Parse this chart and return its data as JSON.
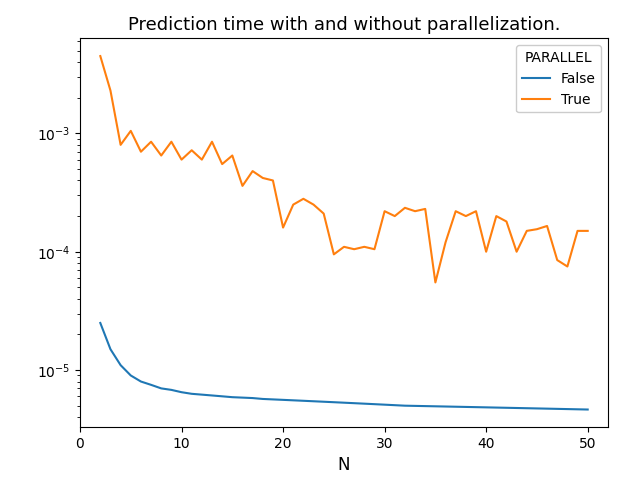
{
  "title": "Prediction time with and without parallelization.",
  "xlabel": "N",
  "legend_title": "PARALLEL",
  "legend_labels": [
    "False",
    "True"
  ],
  "line_colors": [
    "#1f77b4",
    "#ff7f0e"
  ],
  "x": [
    2,
    3,
    4,
    5,
    6,
    7,
    8,
    9,
    10,
    11,
    12,
    13,
    14,
    15,
    16,
    17,
    18,
    19,
    20,
    21,
    22,
    23,
    24,
    25,
    26,
    27,
    28,
    29,
    30,
    31,
    32,
    33,
    34,
    35,
    36,
    37,
    38,
    39,
    40,
    41,
    42,
    43,
    44,
    45,
    46,
    47,
    48,
    49,
    50
  ],
  "y_false": [
    2.5e-05,
    1.5e-05,
    1.1e-05,
    9e-06,
    8e-06,
    7.5e-06,
    7e-06,
    6.8e-06,
    6.5e-06,
    6.3e-06,
    6.2e-06,
    6.1e-06,
    6e-06,
    5.9e-06,
    5.85e-06,
    5.8e-06,
    5.7e-06,
    5.65e-06,
    5.6e-06,
    5.55e-06,
    5.5e-06,
    5.45e-06,
    5.4e-06,
    5.35e-06,
    5.3e-06,
    5.25e-06,
    5.2e-06,
    5.15e-06,
    5.1e-06,
    5.05e-06,
    5e-06,
    4.98e-06,
    4.96e-06,
    4.94e-06,
    4.92e-06,
    4.9e-06,
    4.88e-06,
    4.86e-06,
    4.84e-06,
    4.82e-06,
    4.8e-06,
    4.78e-06,
    4.76e-06,
    4.74e-06,
    4.72e-06,
    4.7e-06,
    4.68e-06,
    4.66e-06,
    4.64e-06
  ],
  "y_true": [
    0.0045,
    0.0023,
    0.0008,
    0.00105,
    0.0007,
    0.00085,
    0.00065,
    0.00085,
    0.0006,
    0.00072,
    0.0006,
    0.00085,
    0.00055,
    0.00065,
    0.00036,
    0.00048,
    0.00042,
    0.0004,
    0.00016,
    0.00025,
    0.00028,
    0.00025,
    0.00021,
    9.5e-05,
    0.00011,
    0.000105,
    0.00011,
    0.000105,
    0.00022,
    0.0002,
    0.000235,
    0.00022,
    0.00023,
    5.5e-05,
    0.00012,
    0.00022,
    0.0002,
    0.00022,
    0.0001,
    0.0002,
    0.00018,
    0.0001,
    0.00015,
    0.000155,
    0.000165,
    8.5e-05,
    7.5e-05,
    0.00015,
    0.00015
  ],
  "xlim": [
    0,
    52
  ],
  "xticks": [
    0,
    10,
    20,
    30,
    40,
    50
  ],
  "figsize": [
    6.4,
    4.8
  ],
  "dpi": 100
}
